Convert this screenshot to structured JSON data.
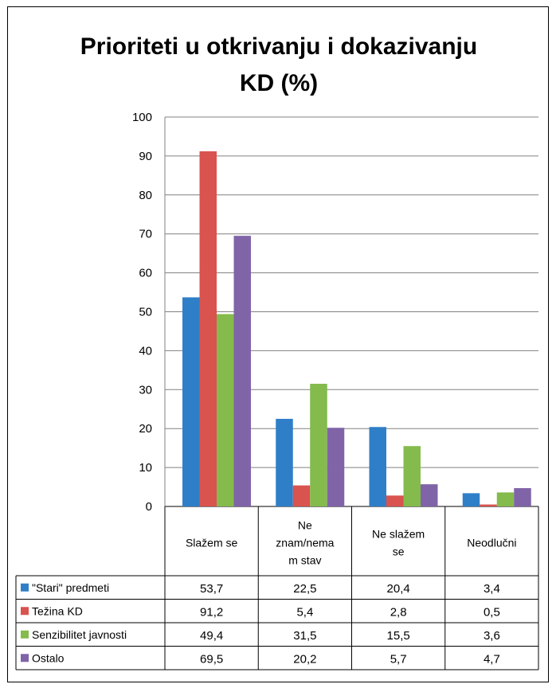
{
  "chart_data": {
    "type": "bar",
    "title_line1": "Prioriteti u otkrivanju i dokazivanju",
    "title_line2": "KD (%)",
    "categories": [
      "Slažem se",
      "Ne znam/nema stav",
      "Ne slažem se",
      "Neodlučni"
    ],
    "category_label_lines": [
      [
        "Slažem se"
      ],
      [
        "Ne",
        "znam/nema",
        "m stav"
      ],
      [
        "Ne slažem",
        "se"
      ],
      [
        "Neodlučni"
      ]
    ],
    "series": [
      {
        "name": "\"Stari\" predmeti",
        "color": "#2f7fc8",
        "values": [
          53.7,
          22.5,
          20.4,
          3.4
        ],
        "labels": [
          "53,7",
          "22,5",
          "20,4",
          "3,4"
        ]
      },
      {
        "name": "Težina KD",
        "color": "#d9534f",
        "values": [
          91.2,
          5.4,
          2.8,
          0.5
        ],
        "labels": [
          "91,2",
          "5,4",
          "2,8",
          "0,5"
        ]
      },
      {
        "name": "Senzibilitet javnosti",
        "color": "#84bb4c",
        "values": [
          49.4,
          31.5,
          15.5,
          3.6
        ],
        "labels": [
          "49,4",
          "31,5",
          "15,5",
          "3,6"
        ]
      },
      {
        "name": "Ostalo",
        "color": "#8064a8",
        "values": [
          69.5,
          20.2,
          5.7,
          4.7
        ],
        "labels": [
          "69,5",
          "20,2",
          "5,7",
          "4,7"
        ]
      }
    ],
    "ylim": [
      0,
      100
    ],
    "yticks": [
      "0",
      "10",
      "20",
      "30",
      "40",
      "50",
      "60",
      "70",
      "80",
      "90",
      "100"
    ],
    "grid": true,
    "data_table": true
  }
}
